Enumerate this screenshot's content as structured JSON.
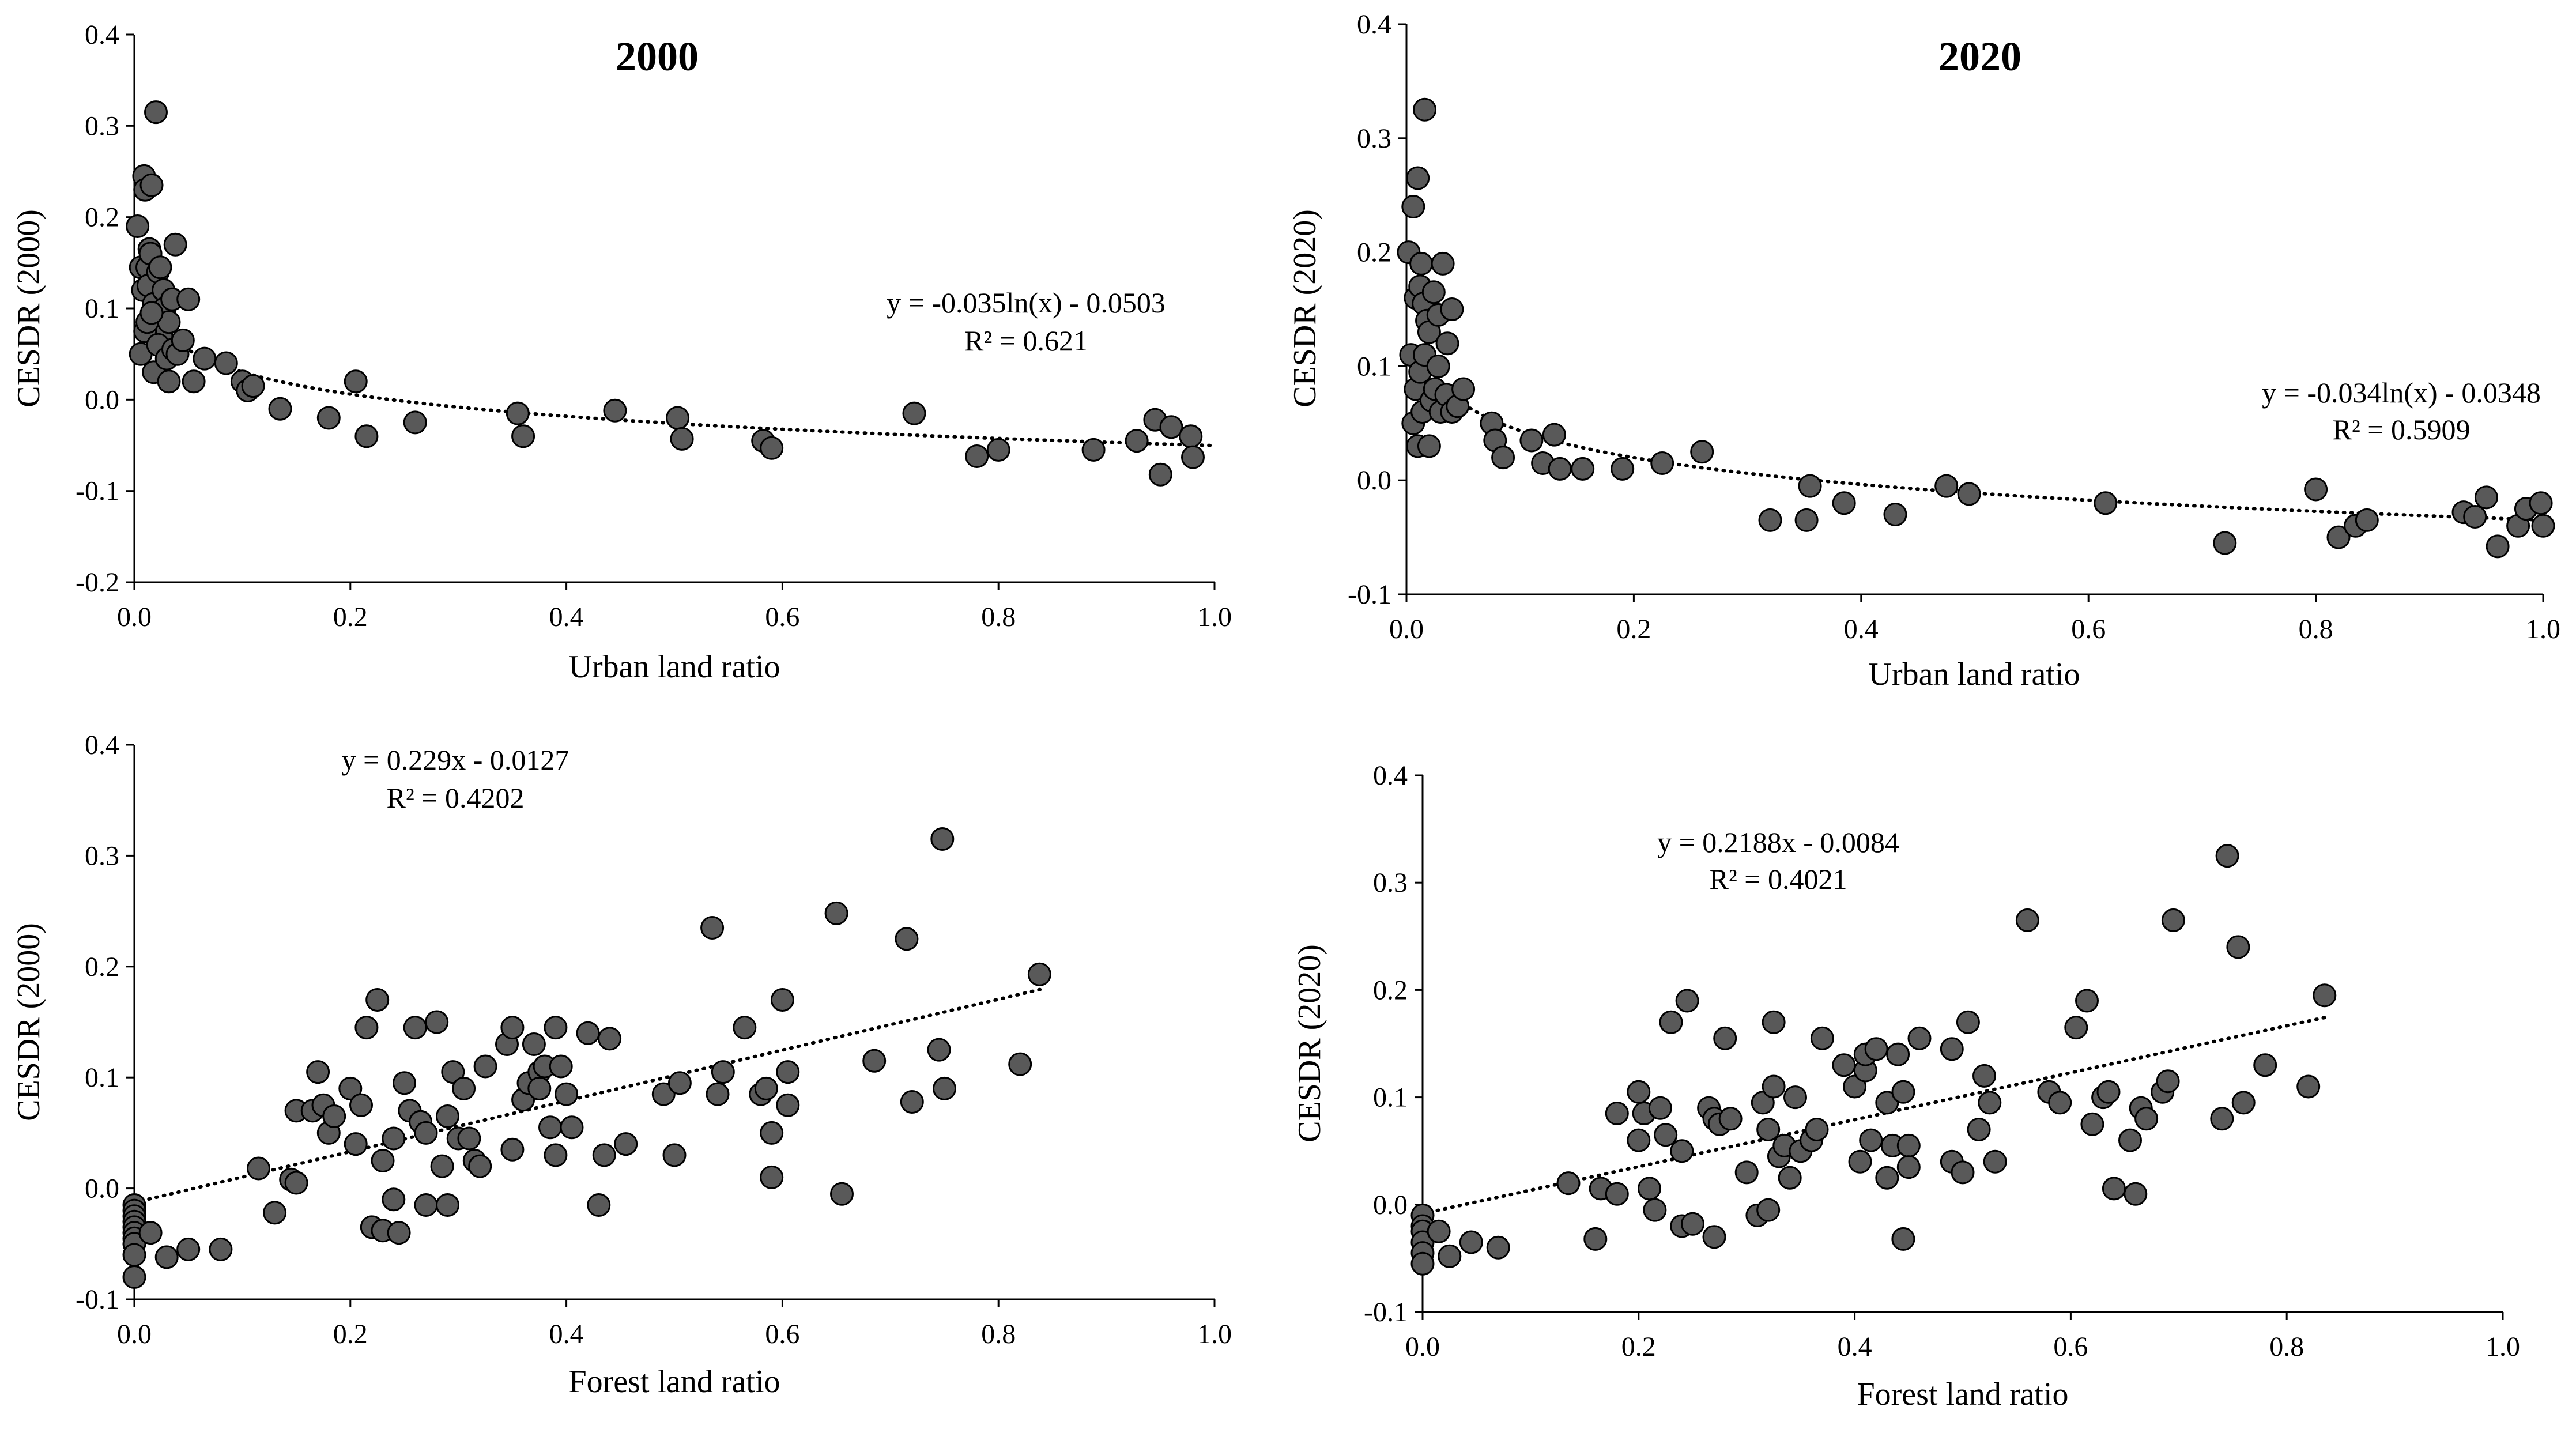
{
  "chart_data": [
    {
      "type": "scatter",
      "title": "2000",
      "xlabel": "Urban land ratio",
      "ylabel": "CESDR (2000)",
      "xlim": [
        0.0,
        1.0
      ],
      "ylim": [
        -0.2,
        0.4
      ],
      "x_ticks": [
        "0.0",
        "0.2",
        "0.4",
        "0.6",
        "0.8",
        "1.0"
      ],
      "y_ticks": [
        "-0.2",
        "-0.1",
        "0.0",
        "0.1",
        "0.2",
        "0.3",
        "0.4"
      ],
      "trendline": {
        "form": "log",
        "a": -0.035,
        "b": -0.0503
      },
      "equation": "y = -0.035ln(x) - 0.0503",
      "r2_label": "R² = 0.621",
      "points": [
        [
          0.003,
          0.19
        ],
        [
          0.006,
          0.145
        ],
        [
          0.008,
          0.12
        ],
        [
          0.009,
          0.245
        ],
        [
          0.01,
          0.23
        ],
        [
          0.012,
          0.145
        ],
        [
          0.013,
          0.125
        ],
        [
          0.014,
          0.165
        ],
        [
          0.015,
          0.16
        ],
        [
          0.016,
          0.235
        ],
        [
          0.018,
          0.105
        ],
        [
          0.02,
          0.315
        ],
        [
          0.022,
          0.14
        ],
        [
          0.024,
          0.145
        ],
        [
          0.025,
          0.07
        ],
        [
          0.027,
          0.12
        ],
        [
          0.028,
          0.1
        ],
        [
          0.032,
          0.085
        ],
        [
          0.035,
          0.11
        ],
        [
          0.038,
          0.17
        ],
        [
          0.006,
          0.05
        ],
        [
          0.01,
          0.075
        ],
        [
          0.012,
          0.085
        ],
        [
          0.016,
          0.095
        ],
        [
          0.018,
          0.03
        ],
        [
          0.022,
          0.06
        ],
        [
          0.03,
          0.045
        ],
        [
          0.032,
          0.02
        ],
        [
          0.036,
          0.055
        ],
        [
          0.04,
          0.05
        ],
        [
          0.045,
          0.065
        ],
        [
          0.05,
          0.11
        ],
        [
          0.055,
          0.02
        ],
        [
          0.065,
          0.045
        ],
        [
          0.085,
          0.04
        ],
        [
          0.1,
          0.02
        ],
        [
          0.105,
          0.01
        ],
        [
          0.11,
          0.015
        ],
        [
          0.135,
          -0.01
        ],
        [
          0.18,
          -0.02
        ],
        [
          0.205,
          0.02
        ],
        [
          0.215,
          -0.04
        ],
        [
          0.26,
          -0.025
        ],
        [
          0.355,
          -0.015
        ],
        [
          0.36,
          -0.04
        ],
        [
          0.445,
          -0.012
        ],
        [
          0.503,
          -0.02
        ],
        [
          0.507,
          -0.043
        ],
        [
          0.582,
          -0.045
        ],
        [
          0.59,
          -0.053
        ],
        [
          0.722,
          -0.015
        ],
        [
          0.78,
          -0.062
        ],
        [
          0.8,
          -0.055
        ],
        [
          0.888,
          -0.055
        ],
        [
          0.928,
          -0.045
        ],
        [
          0.945,
          -0.022
        ],
        [
          0.95,
          -0.082
        ],
        [
          0.96,
          -0.03
        ],
        [
          0.978,
          -0.04
        ],
        [
          0.98,
          -0.063
        ]
      ]
    },
    {
      "type": "scatter",
      "title": "2020",
      "xlabel": "Urban land ratio",
      "ylabel": "CESDR (2020)",
      "xlim": [
        0.0,
        1.0
      ],
      "ylim": [
        -0.1,
        0.4
      ],
      "x_ticks": [
        "0.0",
        "0.2",
        "0.4",
        "0.6",
        "0.8",
        "1.0"
      ],
      "y_ticks": [
        "-0.1",
        "0.0",
        "0.1",
        "0.2",
        "0.3",
        "0.4"
      ],
      "trendline": {
        "form": "log",
        "a": -0.034,
        "b": -0.0348
      },
      "equation": "y = -0.034ln(x) - 0.0348",
      "r2_label": "R² = 0.5909",
      "points": [
        [
          0.002,
          0.2
        ],
        [
          0.006,
          0.24
        ],
        [
          0.01,
          0.265
        ],
        [
          0.013,
          0.19
        ],
        [
          0.016,
          0.325
        ],
        [
          0.008,
          0.16
        ],
        [
          0.012,
          0.17
        ],
        [
          0.015,
          0.155
        ],
        [
          0.018,
          0.14
        ],
        [
          0.02,
          0.13
        ],
        [
          0.024,
          0.165
        ],
        [
          0.028,
          0.145
        ],
        [
          0.032,
          0.19
        ],
        [
          0.036,
          0.12
        ],
        [
          0.04,
          0.15
        ],
        [
          0.004,
          0.11
        ],
        [
          0.006,
          0.05
        ],
        [
          0.008,
          0.08
        ],
        [
          0.01,
          0.03
        ],
        [
          0.012,
          0.095
        ],
        [
          0.014,
          0.06
        ],
        [
          0.016,
          0.11
        ],
        [
          0.02,
          0.03
        ],
        [
          0.022,
          0.07
        ],
        [
          0.025,
          0.08
        ],
        [
          0.028,
          0.1
        ],
        [
          0.03,
          0.06
        ],
        [
          0.035,
          0.075
        ],
        [
          0.04,
          0.06
        ],
        [
          0.045,
          0.065
        ],
        [
          0.05,
          0.08
        ],
        [
          0.075,
          0.05
        ],
        [
          0.078,
          0.035
        ],
        [
          0.085,
          0.02
        ],
        [
          0.11,
          0.035
        ],
        [
          0.12,
          0.015
        ],
        [
          0.13,
          0.04
        ],
        [
          0.135,
          0.01
        ],
        [
          0.155,
          0.01
        ],
        [
          0.19,
          0.01
        ],
        [
          0.225,
          0.015
        ],
        [
          0.26,
          0.025
        ],
        [
          0.32,
          -0.035
        ],
        [
          0.352,
          -0.035
        ],
        [
          0.355,
          -0.005
        ],
        [
          0.385,
          -0.02
        ],
        [
          0.43,
          -0.03
        ],
        [
          0.475,
          -0.005
        ],
        [
          0.495,
          -0.012
        ],
        [
          0.615,
          -0.02
        ],
        [
          0.72,
          -0.055
        ],
        [
          0.8,
          -0.008
        ],
        [
          0.82,
          -0.05
        ],
        [
          0.835,
          -0.04
        ],
        [
          0.845,
          -0.035
        ],
        [
          0.93,
          -0.028
        ],
        [
          0.94,
          -0.032
        ],
        [
          0.95,
          -0.015
        ],
        [
          0.96,
          -0.058
        ],
        [
          0.978,
          -0.04
        ],
        [
          0.985,
          -0.025
        ],
        [
          0.998,
          -0.02
        ],
        [
          1.0,
          -0.04
        ]
      ]
    },
    {
      "type": "scatter",
      "title": "",
      "xlabel": "Forest land ratio",
      "ylabel": "CESDR (2000)",
      "xlim": [
        0.0,
        1.0
      ],
      "ylim": [
        -0.1,
        0.4
      ],
      "x_ticks": [
        "0.0",
        "0.2",
        "0.4",
        "0.6",
        "0.8",
        "1.0"
      ],
      "y_ticks": [
        "-0.1",
        "0.0",
        "0.1",
        "0.2",
        "0.3",
        "0.4"
      ],
      "trendline": {
        "form": "linear",
        "slope": 0.229,
        "intercept": -0.0127,
        "x_range": [
          0.0,
          0.84
        ]
      },
      "equation": "y = 0.229x - 0.0127",
      "r2_label": "R² = 0.4202",
      "points": [
        [
          0.0,
          -0.015
        ],
        [
          0.0,
          -0.02
        ],
        [
          0.0,
          -0.025
        ],
        [
          0.0,
          -0.03
        ],
        [
          0.0,
          -0.035
        ],
        [
          0.0,
          -0.04
        ],
        [
          0.0,
          -0.045
        ],
        [
          0.0,
          -0.05
        ],
        [
          0.0,
          -0.06
        ],
        [
          0.0,
          -0.08
        ],
        [
          0.015,
          -0.04
        ],
        [
          0.03,
          -0.062
        ],
        [
          0.05,
          -0.055
        ],
        [
          0.08,
          -0.055
        ],
        [
          0.115,
          0.018
        ],
        [
          0.13,
          -0.022
        ],
        [
          0.145,
          0.008
        ],
        [
          0.15,
          0.005
        ],
        [
          0.15,
          0.07
        ],
        [
          0.165,
          0.07
        ],
        [
          0.17,
          0.105
        ],
        [
          0.175,
          0.075
        ],
        [
          0.18,
          0.05
        ],
        [
          0.185,
          0.065
        ],
        [
          0.2,
          0.09
        ],
        [
          0.205,
          0.04
        ],
        [
          0.21,
          0.075
        ],
        [
          0.215,
          0.145
        ],
        [
          0.22,
          -0.035
        ],
        [
          0.225,
          0.17
        ],
        [
          0.23,
          -0.038
        ],
        [
          0.23,
          0.025
        ],
        [
          0.24,
          0.045
        ],
        [
          0.24,
          -0.01
        ],
        [
          0.245,
          -0.04
        ],
        [
          0.25,
          0.095
        ],
        [
          0.255,
          0.07
        ],
        [
          0.26,
          0.145
        ],
        [
          0.265,
          0.06
        ],
        [
          0.27,
          0.05
        ],
        [
          0.27,
          -0.015
        ],
        [
          0.28,
          0.15
        ],
        [
          0.285,
          0.02
        ],
        [
          0.29,
          -0.015
        ],
        [
          0.29,
          0.065
        ],
        [
          0.295,
          0.105
        ],
        [
          0.3,
          0.045
        ],
        [
          0.305,
          0.09
        ],
        [
          0.31,
          0.045
        ],
        [
          0.315,
          0.025
        ],
        [
          0.32,
          0.02
        ],
        [
          0.325,
          0.11
        ],
        [
          0.345,
          0.13
        ],
        [
          0.35,
          0.145
        ],
        [
          0.35,
          0.035
        ],
        [
          0.36,
          0.08
        ],
        [
          0.365,
          0.095
        ],
        [
          0.37,
          0.13
        ],
        [
          0.375,
          0.105
        ],
        [
          0.375,
          0.09
        ],
        [
          0.38,
          0.11
        ],
        [
          0.385,
          0.055
        ],
        [
          0.39,
          0.145
        ],
        [
          0.39,
          0.03
        ],
        [
          0.395,
          0.11
        ],
        [
          0.4,
          0.085
        ],
        [
          0.405,
          0.055
        ],
        [
          0.42,
          0.14
        ],
        [
          0.43,
          -0.015
        ],
        [
          0.435,
          0.03
        ],
        [
          0.44,
          0.135
        ],
        [
          0.455,
          0.04
        ],
        [
          0.49,
          0.085
        ],
        [
          0.5,
          0.03
        ],
        [
          0.505,
          0.095
        ],
        [
          0.535,
          0.235
        ],
        [
          0.54,
          0.085
        ],
        [
          0.545,
          0.105
        ],
        [
          0.565,
          0.145
        ],
        [
          0.58,
          0.085
        ],
        [
          0.585,
          0.09
        ],
        [
          0.59,
          0.05
        ],
        [
          0.59,
          0.01
        ],
        [
          0.6,
          0.17
        ],
        [
          0.605,
          0.075
        ],
        [
          0.605,
          0.105
        ],
        [
          0.65,
          0.248
        ],
        [
          0.655,
          -0.005
        ],
        [
          0.685,
          0.115
        ],
        [
          0.715,
          0.225
        ],
        [
          0.72,
          0.078
        ],
        [
          0.745,
          0.125
        ],
        [
          0.748,
          0.315
        ],
        [
          0.75,
          0.09
        ],
        [
          0.82,
          0.112
        ],
        [
          0.838,
          0.193
        ]
      ]
    },
    {
      "type": "scatter",
      "title": "",
      "xlabel": "Forest land ratio",
      "ylabel": "CESDR (2020)",
      "xlim": [
        0.0,
        1.0
      ],
      "ylim": [
        -0.1,
        0.4
      ],
      "x_ticks": [
        "0.0",
        "0.2",
        "0.4",
        "0.6",
        "0.8",
        "1.0"
      ],
      "y_ticks": [
        "-0.1",
        "0.0",
        "0.1",
        "0.2",
        "0.3",
        "0.4"
      ],
      "trendline": {
        "form": "linear",
        "slope": 0.2188,
        "intercept": -0.0084,
        "x_range": [
          0.0,
          0.84
        ]
      },
      "equation": "y = 0.2188x - 0.0084",
      "r2_label": "R² = 0.4021",
      "points": [
        [
          0.0,
          -0.01
        ],
        [
          0.0,
          -0.02
        ],
        [
          0.0,
          -0.025
        ],
        [
          0.0,
          -0.035
        ],
        [
          0.0,
          -0.045
        ],
        [
          0.0,
          -0.055
        ],
        [
          0.015,
          -0.025
        ],
        [
          0.025,
          -0.048
        ],
        [
          0.045,
          -0.035
        ],
        [
          0.07,
          -0.04
        ],
        [
          0.135,
          0.02
        ],
        [
          0.16,
          -0.032
        ],
        [
          0.165,
          0.015
        ],
        [
          0.18,
          0.01
        ],
        [
          0.18,
          0.085
        ],
        [
          0.2,
          0.06
        ],
        [
          0.2,
          0.105
        ],
        [
          0.205,
          0.085
        ],
        [
          0.21,
          0.015
        ],
        [
          0.215,
          -0.005
        ],
        [
          0.22,
          0.09
        ],
        [
          0.225,
          0.065
        ],
        [
          0.23,
          0.17
        ],
        [
          0.24,
          0.05
        ],
        [
          0.24,
          -0.02
        ],
        [
          0.245,
          0.19
        ],
        [
          0.25,
          -0.018
        ],
        [
          0.265,
          0.09
        ],
        [
          0.27,
          -0.03
        ],
        [
          0.27,
          0.08
        ],
        [
          0.275,
          0.075
        ],
        [
          0.28,
          0.155
        ],
        [
          0.285,
          0.08
        ],
        [
          0.3,
          0.03
        ],
        [
          0.31,
          -0.01
        ],
        [
          0.315,
          0.095
        ],
        [
          0.32,
          -0.005
        ],
        [
          0.32,
          0.07
        ],
        [
          0.325,
          0.17
        ],
        [
          0.325,
          0.11
        ],
        [
          0.33,
          0.045
        ],
        [
          0.335,
          0.055
        ],
        [
          0.34,
          0.025
        ],
        [
          0.345,
          0.1
        ],
        [
          0.35,
          0.05
        ],
        [
          0.36,
          0.06
        ],
        [
          0.365,
          0.07
        ],
        [
          0.37,
          0.155
        ],
        [
          0.39,
          0.13
        ],
        [
          0.4,
          0.11
        ],
        [
          0.405,
          0.04
        ],
        [
          0.41,
          0.125
        ],
        [
          0.41,
          0.14
        ],
        [
          0.415,
          0.06
        ],
        [
          0.42,
          0.145
        ],
        [
          0.43,
          0.025
        ],
        [
          0.43,
          0.095
        ],
        [
          0.435,
          0.055
        ],
        [
          0.44,
          0.14
        ],
        [
          0.445,
          0.105
        ],
        [
          0.445,
          -0.032
        ],
        [
          0.45,
          0.055
        ],
        [
          0.45,
          0.035
        ],
        [
          0.46,
          0.155
        ],
        [
          0.49,
          0.145
        ],
        [
          0.49,
          0.04
        ],
        [
          0.5,
          0.03
        ],
        [
          0.505,
          0.17
        ],
        [
          0.515,
          0.07
        ],
        [
          0.52,
          0.12
        ],
        [
          0.525,
          0.095
        ],
        [
          0.53,
          0.04
        ],
        [
          0.56,
          0.265
        ],
        [
          0.58,
          0.105
        ],
        [
          0.59,
          0.095
        ],
        [
          0.605,
          0.165
        ],
        [
          0.615,
          0.19
        ],
        [
          0.62,
          0.075
        ],
        [
          0.63,
          0.1
        ],
        [
          0.635,
          0.105
        ],
        [
          0.64,
          0.015
        ],
        [
          0.655,
          0.06
        ],
        [
          0.66,
          0.01
        ],
        [
          0.665,
          0.09
        ],
        [
          0.67,
          0.08
        ],
        [
          0.685,
          0.105
        ],
        [
          0.69,
          0.115
        ],
        [
          0.695,
          0.265
        ],
        [
          0.74,
          0.08
        ],
        [
          0.745,
          0.325
        ],
        [
          0.755,
          0.24
        ],
        [
          0.76,
          0.095
        ],
        [
          0.78,
          0.13
        ],
        [
          0.82,
          0.11
        ],
        [
          0.835,
          0.195
        ]
      ]
    }
  ]
}
